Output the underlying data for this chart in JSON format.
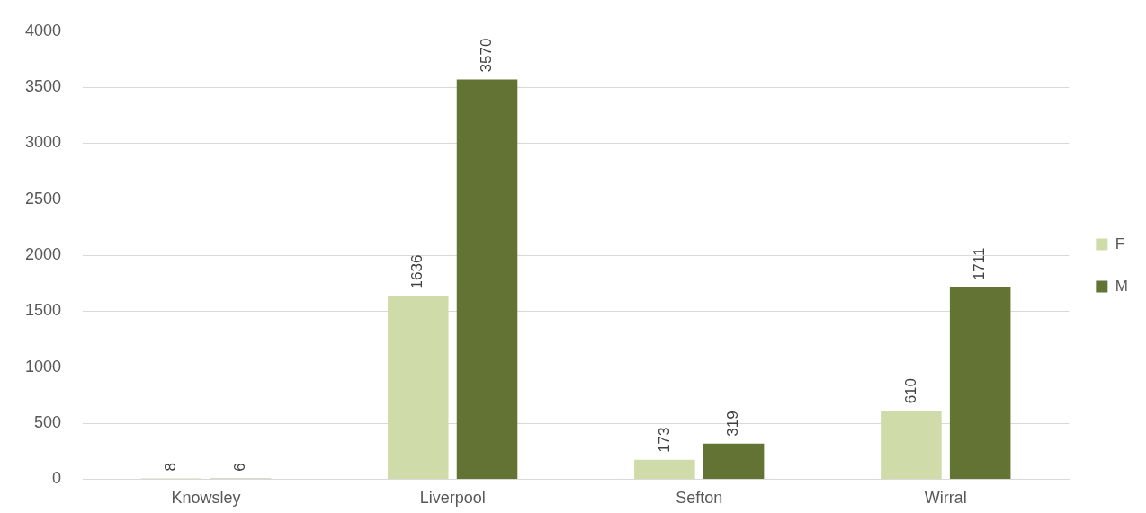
{
  "chart_data": {
    "type": "bar",
    "categories": [
      "Knowsley",
      "Liverpool",
      "Sefton",
      "Wirral"
    ],
    "series": [
      {
        "name": "F",
        "color": "#cfdcaa",
        "values": [
          8,
          1636,
          173,
          610
        ]
      },
      {
        "name": "M",
        "color": "#627334",
        "values": [
          6,
          3570,
          319,
          1711
        ]
      }
    ],
    "ylim": [
      0,
      4000
    ],
    "yticks": [
      0,
      500,
      1000,
      1500,
      2000,
      2500,
      3000,
      3500,
      4000
    ],
    "grid": "y",
    "legend": "right",
    "data_labels": true
  }
}
